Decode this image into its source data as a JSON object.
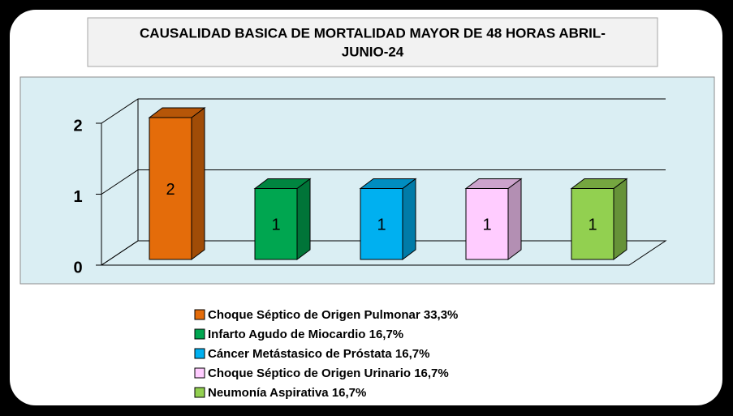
{
  "chart_data": {
    "type": "bar",
    "title": [
      "CAUSALIDAD BASICA DE MORTALIDAD MAYOR DE 48 HORAS ABRIL-",
      "JUNIO-24"
    ],
    "categories": [
      "Choque Séptico de Origen Pulmonar 33,3%",
      "Infarto Agudo de Miocardio 16,7%",
      "Cáncer Metástasico de Próstata 16,7%",
      "Choque Séptico de Origen Urinario 16,7%",
      "Neumonía Aspirativa 16,7%"
    ],
    "values": [
      2,
      1,
      1,
      1,
      1
    ],
    "colors": [
      "#e46c0a",
      "#00a650",
      "#00b0f0",
      "#ffccff",
      "#92d050"
    ],
    "ylim": [
      0,
      2
    ],
    "yticks": [
      0,
      1,
      2
    ],
    "grid": true,
    "legend": "bottom"
  }
}
